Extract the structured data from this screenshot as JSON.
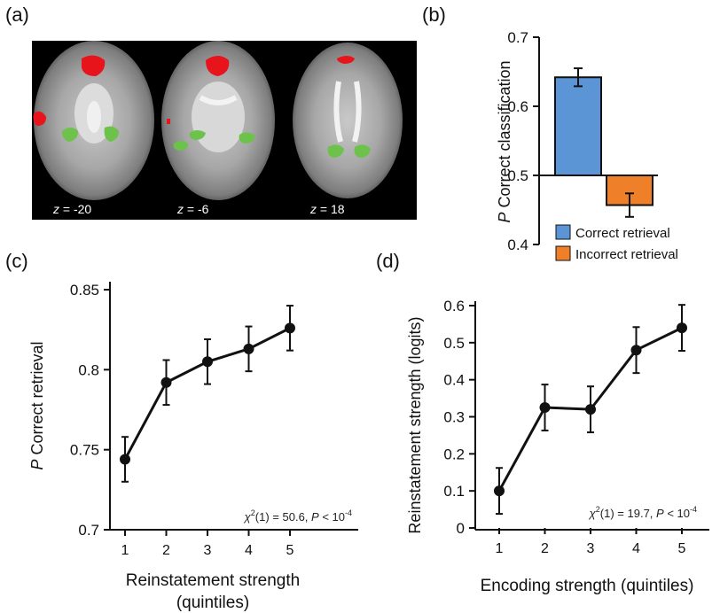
{
  "panels": {
    "a": {
      "label": "(a)",
      "slices": [
        {
          "z_prefix": "z",
          "z_value": " = -20"
        },
        {
          "z_prefix": "z",
          "z_value": " = -6"
        },
        {
          "z_prefix": "z",
          "z_value": " = 18"
        }
      ],
      "colors": {
        "red_cluster": "#e8141b",
        "green_cluster": "#6cc24a",
        "background": "#000000"
      }
    },
    "b": {
      "label": "(b)"
    },
    "c": {
      "label": "(c)"
    },
    "d": {
      "label": "(d)"
    }
  },
  "chart_data": [
    {
      "id": "b",
      "type": "bar",
      "categories": [
        "Correct retrieval",
        "Incorrect retrieval"
      ],
      "values": [
        0.642,
        0.457
      ],
      "errors": [
        0.013,
        0.017
      ],
      "baseline": 0.5,
      "colors": [
        "#5b95d6",
        "#f07f2a"
      ],
      "title": "",
      "xlabel": "",
      "ylabel_italic": "P",
      "ylabel": " Correct classification",
      "ylim": [
        0.4,
        0.7
      ],
      "yticks": [
        "0.4",
        "0.5",
        "0.6",
        "0.7"
      ],
      "legend": [
        "Correct retrieval",
        "Incorrect retrieval"
      ],
      "legend_position": "bottom"
    },
    {
      "id": "c",
      "type": "line",
      "x": [
        1,
        2,
        3,
        4,
        5
      ],
      "y": [
        0.744,
        0.792,
        0.805,
        0.813,
        0.826
      ],
      "errors": [
        0.014,
        0.014,
        0.014,
        0.014,
        0.014
      ],
      "title": "",
      "xlabel": "Reinstatement strength",
      "xlabel2": "(quintiles)",
      "ylabel_italic": "P",
      "ylabel": " Correct retrieval",
      "ylim": [
        0.7,
        0.85
      ],
      "yticks": [
        "0.7",
        "0.75",
        "0.8",
        "0.85"
      ],
      "xticks": [
        "1",
        "2",
        "3",
        "4",
        "5"
      ],
      "annotation": {
        "chi": "χ",
        "sup1": "2",
        "rest": "(1) = 50.6, ",
        "p": "P",
        "lt": " < 10",
        "sup2": "-4"
      }
    },
    {
      "id": "d",
      "type": "line",
      "x": [
        1,
        2,
        3,
        4,
        5
      ],
      "y": [
        0.1,
        0.325,
        0.32,
        0.48,
        0.54
      ],
      "errors": [
        0.062,
        0.062,
        0.062,
        0.062,
        0.062
      ],
      "title": "",
      "xlabel": "Encoding strength (quintiles)",
      "ylabel": "Reinstatement strength (logits)",
      "ylim": [
        0,
        0.6
      ],
      "yticks": [
        "0",
        "0.1",
        "0.2",
        "0.3",
        "0.4",
        "0.5",
        "0.6"
      ],
      "xticks": [
        "1",
        "2",
        "3",
        "4",
        "5"
      ],
      "annotation": {
        "chi": "χ",
        "sup1": "2",
        "rest": "(1) = 19.7, ",
        "p": "P",
        "lt": " < 10",
        "sup2": "-4"
      }
    }
  ]
}
